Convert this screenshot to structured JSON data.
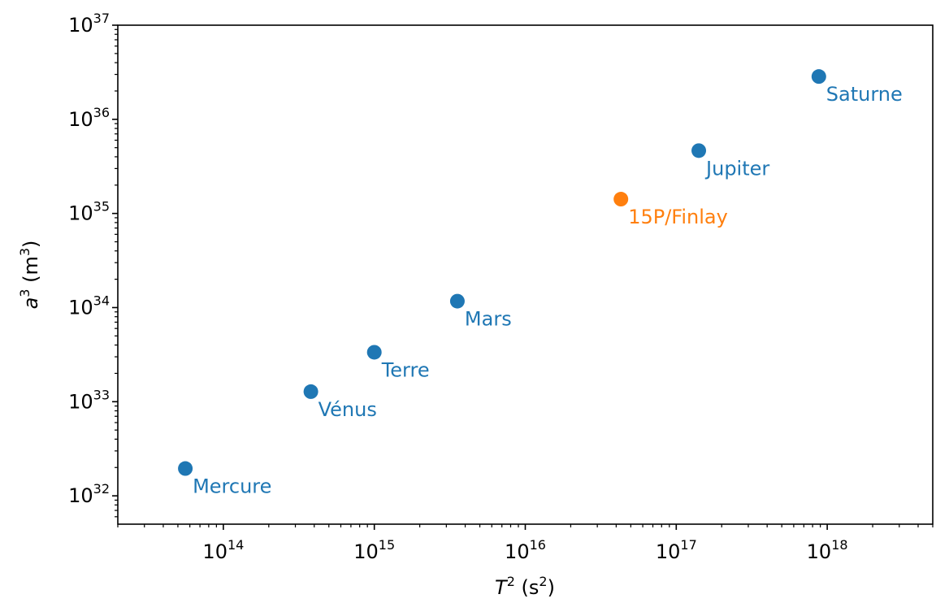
{
  "chart_data": {
    "type": "scatter",
    "title": "",
    "xlabel": {
      "symbol": "T",
      "sup": "2",
      "unit": " (s",
      "unit_sup": "2",
      "close": ")"
    },
    "ylabel": {
      "symbol": "a",
      "sup": "3",
      "unit": " (m",
      "unit_sup": "3",
      "close": ")"
    },
    "xscale": "log",
    "yscale": "log",
    "xlim": [
      20000000000000.0,
      5e+18
    ],
    "ylim": [
      5e+31,
      1e+37
    ],
    "grid": false,
    "xticks": [
      {
        "base": "10",
        "exp": "14",
        "value": 100000000000000.0
      },
      {
        "base": "10",
        "exp": "15",
        "value": 1000000000000000.0
      },
      {
        "base": "10",
        "exp": "16",
        "value": 1e+16
      },
      {
        "base": "10",
        "exp": "17",
        "value": 1e+17
      },
      {
        "base": "10",
        "exp": "18",
        "value": 1e+18
      }
    ],
    "yticks": [
      {
        "base": "10",
        "exp": "32",
        "value": 1e+32
      },
      {
        "base": "10",
        "exp": "33",
        "value": 1e+33
      },
      {
        "base": "10",
        "exp": "34",
        "value": 1e+34
      },
      {
        "base": "10",
        "exp": "35",
        "value": 1e+35
      },
      {
        "base": "10",
        "exp": "36",
        "value": 1e+36
      },
      {
        "base": "10",
        "exp": "37",
        "value": 1e+37
      }
    ],
    "points": [
      {
        "label": "Mercure",
        "x": 56000000000000.0,
        "y": 1.95e+32,
        "color": "#1f77b4"
      },
      {
        "label": "Vénus",
        "x": 380000000000000.0,
        "y": 1.28e+33,
        "color": "#1f77b4"
      },
      {
        "label": "Terre",
        "x": 1000000000000000.0,
        "y": 3.35e+33,
        "color": "#1f77b4"
      },
      {
        "label": "Mars",
        "x": 3550000000000000.0,
        "y": 1.17e+34,
        "color": "#1f77b4"
      },
      {
        "label": "15P/Finlay",
        "x": 4.3e+16,
        "y": 1.42e+35,
        "color": "#ff7f0e"
      },
      {
        "label": "Jupiter",
        "x": 1.41e+17,
        "y": 4.65e+35,
        "color": "#1f77b4"
      },
      {
        "label": "Saturne",
        "x": 8.8e+17,
        "y": 2.85e+36,
        "color": "#1f77b4"
      }
    ]
  }
}
